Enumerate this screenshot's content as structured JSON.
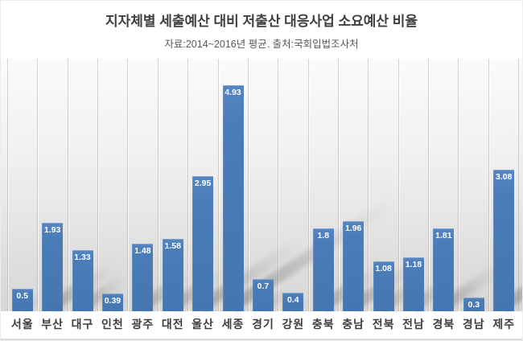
{
  "chart_data": {
    "type": "bar",
    "title": "지자체별 세출예산 대비 저출산 대응사업 소요예산 비율",
    "subtitle": "자료:2014~2016년 평균. 출처:국회입법조사처",
    "categories": [
      "서울",
      "부산",
      "대구",
      "인천",
      "광주",
      "대전",
      "울산",
      "세종",
      "경기",
      "강원",
      "충북",
      "충남",
      "전북",
      "전남",
      "경북",
      "경남",
      "제주"
    ],
    "values": [
      0.5,
      1.93,
      1.33,
      0.39,
      1.48,
      1.58,
      2.95,
      4.93,
      0.7,
      0.4,
      1.8,
      1.96,
      1.08,
      1.18,
      1.81,
      0.3,
      3.08
    ],
    "value_labels": [
      "0.5",
      "1.93",
      "1.33",
      "0.39",
      "1.48",
      "1.58",
      "2.95",
      "4.93",
      "0.7",
      "0.4",
      "1.8",
      "1.96",
      "1.08",
      "1.18",
      "1.81",
      "0.3",
      "3.08"
    ],
    "xlabel": "",
    "ylabel": "",
    "ylim": [
      0,
      5.5
    ],
    "grid": "vertical",
    "legend": "none",
    "bar_color": "#4A7CB8",
    "value_label_color": "#FFFFFF",
    "title_color": "#3F3F3F",
    "subtitle_color": "#595959",
    "axis_label_color": "#3D3D3D"
  }
}
